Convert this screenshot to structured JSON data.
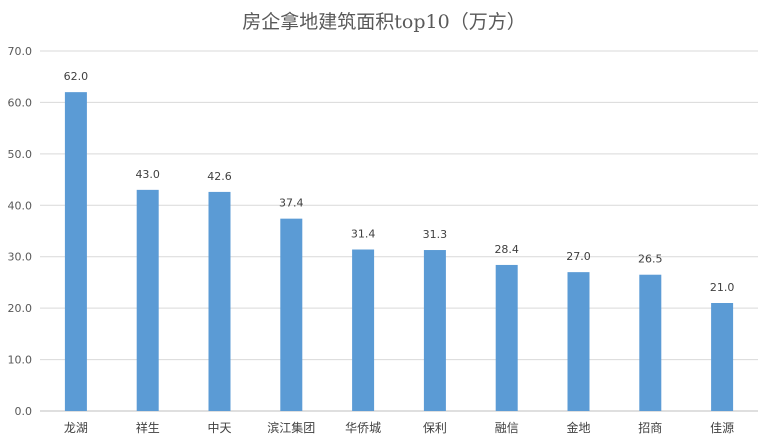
{
  "chart_data": {
    "type": "bar",
    "title": "房企拿地建筑面积top10（万方）",
    "xlabel": "",
    "ylabel": "",
    "categories": [
      "龙湖",
      "祥生",
      "中天",
      "滨江集团",
      "华侨城",
      "保利",
      "融信",
      "金地",
      "招商",
      "佳源"
    ],
    "values": [
      62.0,
      43.0,
      42.6,
      37.4,
      31.4,
      31.3,
      28.4,
      27.0,
      26.5,
      21.0
    ],
    "ylim": [
      0,
      70
    ],
    "yticks": [
      "0.0",
      "10.0",
      "20.0",
      "30.0",
      "40.0",
      "50.0",
      "60.0",
      "70.0"
    ],
    "data_labels": [
      "62.0",
      "43.0",
      "42.6",
      "37.4",
      "31.4",
      "31.3",
      "28.4",
      "27.0",
      "26.5",
      "21.0"
    ],
    "grid": true,
    "legend": "none",
    "bar_color": "#5b9bd5"
  }
}
